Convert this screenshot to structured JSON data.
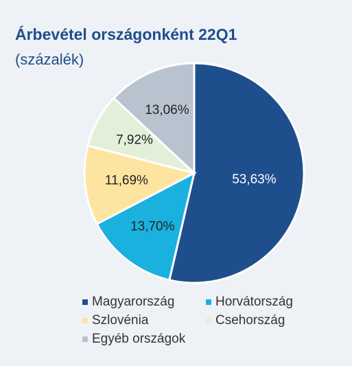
{
  "chart_data": {
    "type": "pie",
    "title": "Árbevétel országonként 22Q1",
    "subtitle": "(százalék)",
    "categories": [
      "Magyarország",
      "Horvátország",
      "Szlovénia",
      "Csehország",
      "Egyéb országok"
    ],
    "values": [
      53.63,
      13.7,
      11.69,
      7.92,
      13.06
    ],
    "value_labels": [
      "53,63%",
      "13,70%",
      "11,69%",
      "7,92%",
      "13,06%"
    ],
    "colors": [
      "#1f4e8c",
      "#1ab1de",
      "#fde5a1",
      "#e3efd8",
      "#b9c3cf"
    ],
    "legend": "bottom"
  }
}
